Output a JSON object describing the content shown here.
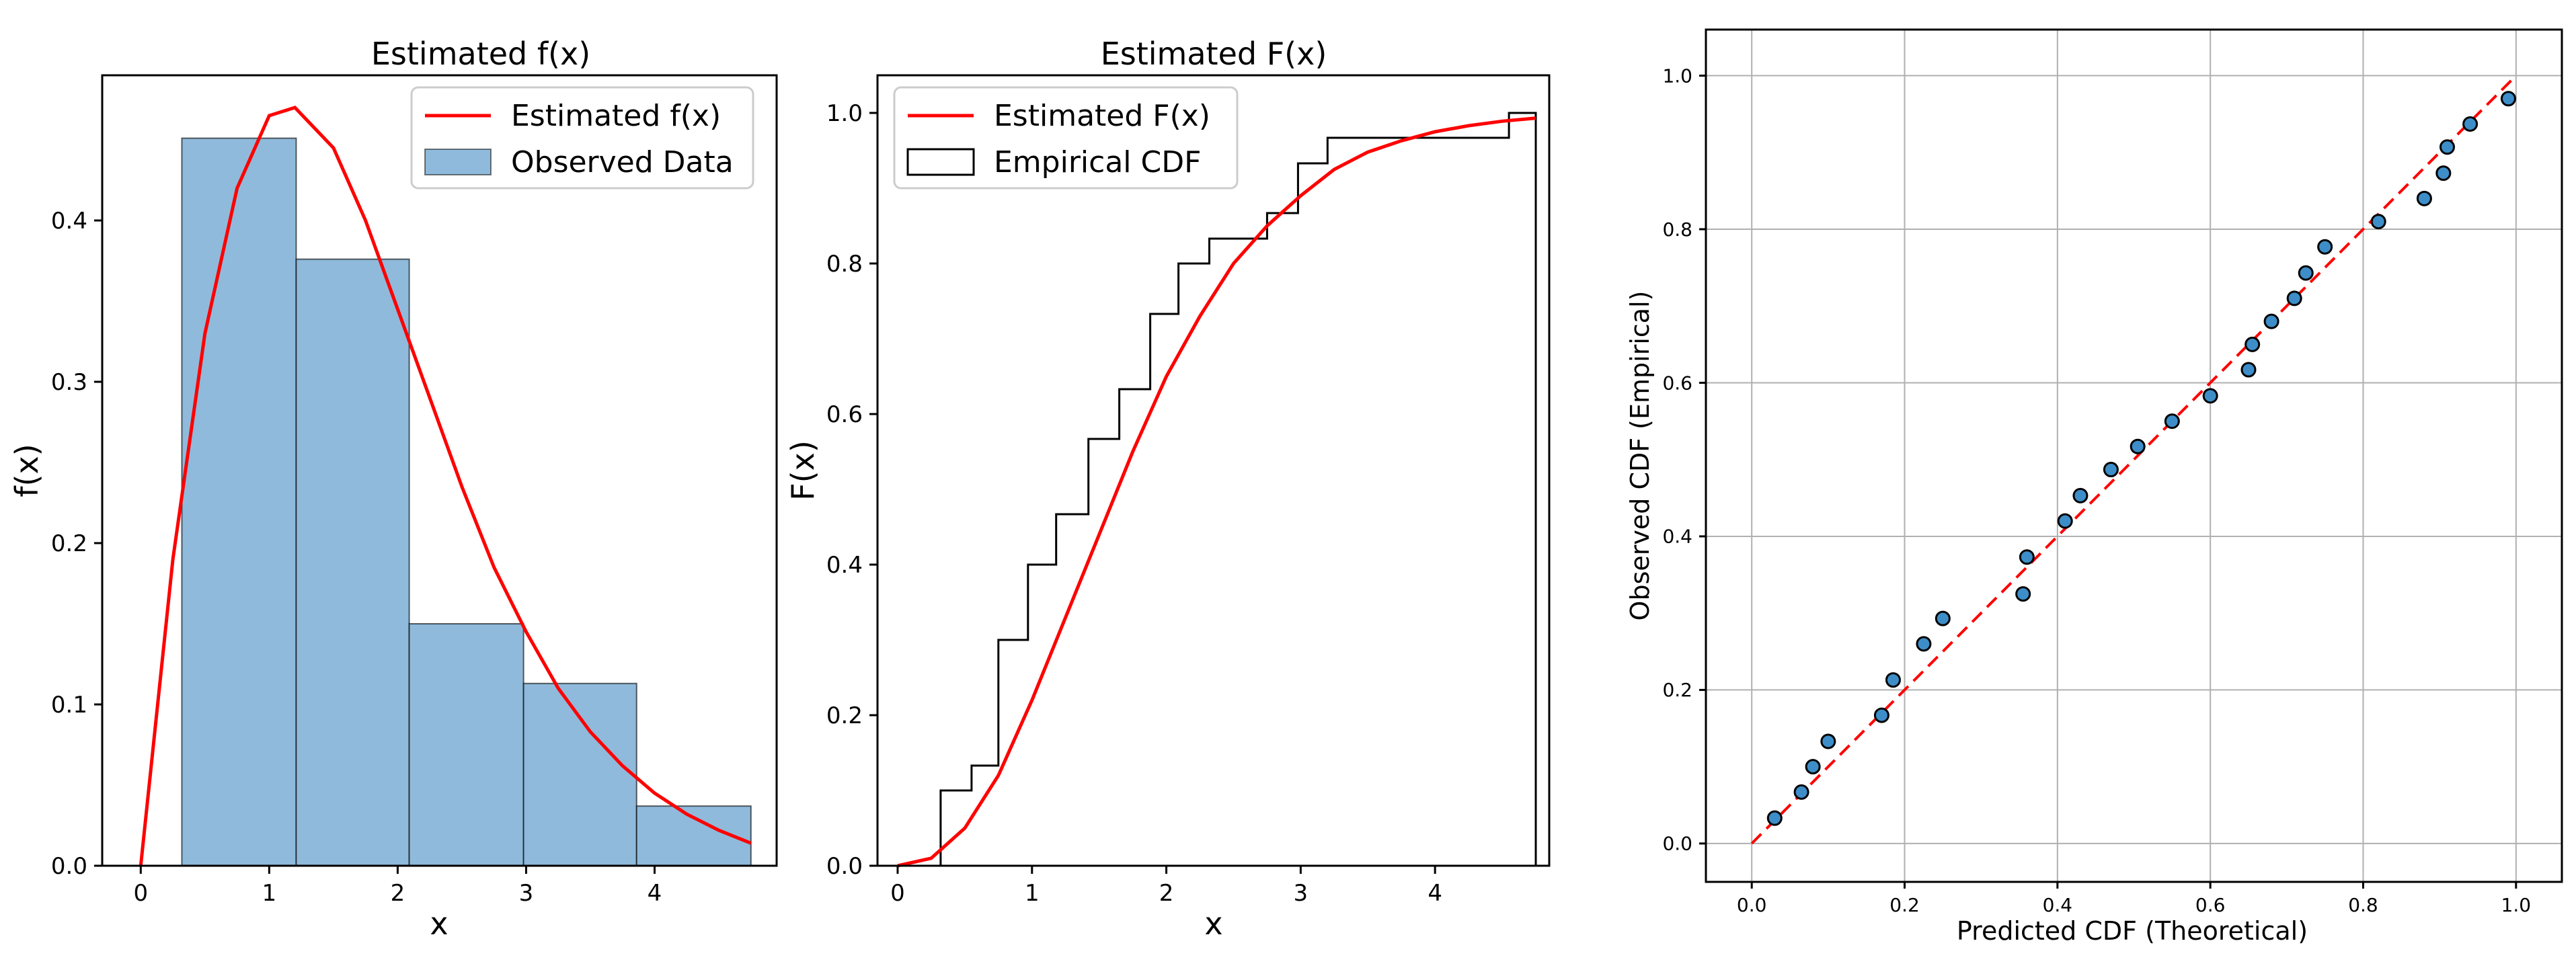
{
  "chart_data": [
    {
      "type": "bar",
      "title": "Estimated f(x)",
      "xlabel": "x",
      "ylabel": "f(x)",
      "xlim": [
        -0.3,
        4.95
      ],
      "ylim": [
        0,
        0.49
      ],
      "xticks": [
        0,
        1,
        2,
        3,
        4
      ],
      "yticks": [
        0.0,
        0.1,
        0.2,
        0.3,
        0.4
      ],
      "grid": false,
      "legend": "top-right",
      "histogram": {
        "name": "Observed Data",
        "color": "#8fbadb",
        "bin_edges": [
          0.32,
          1.21,
          2.09,
          2.98,
          3.86,
          4.75
        ],
        "values": [
          0.451,
          0.376,
          0.15,
          0.113,
          0.037
        ]
      },
      "curve": {
        "name": "Estimated f(x)",
        "color": "#ff0000",
        "x": [
          0,
          0.25,
          0.5,
          0.75,
          1.0,
          1.2,
          1.5,
          1.75,
          2.0,
          2.25,
          2.5,
          2.75,
          3.0,
          3.25,
          3.5,
          3.75,
          4.0,
          4.25,
          4.5,
          4.75
        ],
        "y": [
          0,
          0.19,
          0.33,
          0.42,
          0.465,
          0.47,
          0.445,
          0.4,
          0.345,
          0.29,
          0.235,
          0.185,
          0.145,
          0.11,
          0.083,
          0.062,
          0.045,
          0.032,
          0.022,
          0.014
        ]
      }
    },
    {
      "type": "line",
      "title": "Estimated F(x)",
      "xlabel": "x",
      "ylabel": "F(x)",
      "xlim": [
        -0.15,
        4.85
      ],
      "ylim": [
        0,
        1.05
      ],
      "xticks": [
        0,
        1,
        2,
        3,
        4
      ],
      "yticks": [
        0.0,
        0.2,
        0.4,
        0.6,
        0.8,
        1.0
      ],
      "grid": false,
      "legend": "top-left",
      "series": [
        {
          "name": "Estimated F(x)",
          "color": "#ff0000",
          "x": [
            0,
            0.25,
            0.5,
            0.75,
            1.0,
            1.25,
            1.5,
            1.75,
            2.0,
            2.25,
            2.5,
            2.75,
            3.0,
            3.25,
            3.5,
            3.75,
            4.0,
            4.25,
            4.5,
            4.75
          ],
          "y": [
            0,
            0.01,
            0.05,
            0.12,
            0.22,
            0.33,
            0.44,
            0.55,
            0.65,
            0.73,
            0.8,
            0.85,
            0.89,
            0.925,
            0.948,
            0.963,
            0.975,
            0.983,
            0.989,
            0.993
          ]
        },
        {
          "name": "Empirical CDF",
          "color": "#000000",
          "step_x": [
            0.32,
            0.55,
            0.75,
            0.97,
            1.18,
            1.42,
            1.65,
            1.88,
            2.09,
            2.32,
            2.75,
            2.98,
            3.2,
            4.55,
            4.75
          ],
          "step_y": [
            0.1,
            0.133,
            0.3,
            0.4,
            0.467,
            0.567,
            0.633,
            0.733,
            0.8,
            0.833,
            0.867,
            0.933,
            0.967,
            1.0,
            0
          ]
        }
      ]
    },
    {
      "type": "scatter",
      "title": "",
      "xlabel": "Predicted CDF (Theoretical)",
      "ylabel": "Observed CDF (Empirical)",
      "xlim": [
        -0.06,
        1.06
      ],
      "ylim": [
        -0.05,
        1.06
      ],
      "xticks": [
        0.0,
        0.2,
        0.4,
        0.6,
        0.8,
        1.0
      ],
      "yticks": [
        0.0,
        0.2,
        0.4,
        0.6,
        0.8,
        1.0
      ],
      "grid": true,
      "points": {
        "color": "#3d8ec8",
        "x": [
          0.03,
          0.065,
          0.08,
          0.1,
          0.17,
          0.185,
          0.225,
          0.25,
          0.355,
          0.36,
          0.41,
          0.43,
          0.47,
          0.505,
          0.55,
          0.6,
          0.65,
          0.655,
          0.68,
          0.71,
          0.725,
          0.75,
          0.82,
          0.88,
          0.905,
          0.91,
          0.94,
          0.99
        ],
        "y": [
          0.033,
          0.067,
          0.1,
          0.133,
          0.167,
          0.213,
          0.26,
          0.293,
          0.325,
          0.373,
          0.42,
          0.453,
          0.487,
          0.517,
          0.55,
          0.583,
          0.617,
          0.65,
          0.68,
          0.71,
          0.743,
          0.777,
          0.81,
          0.84,
          0.873,
          0.907,
          0.937,
          0.97
        ]
      },
      "reference_line": {
        "color": "#ff0000",
        "x": [
          0,
          1
        ],
        "y": [
          0,
          1
        ]
      }
    }
  ]
}
